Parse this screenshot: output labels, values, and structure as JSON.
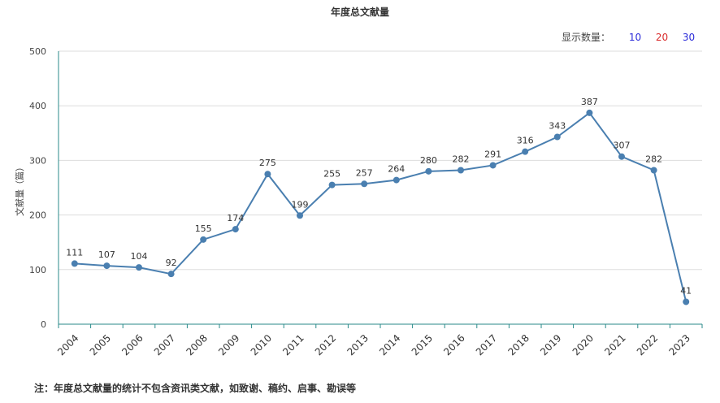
{
  "chart_data": {
    "type": "line",
    "title": "年度总文献量",
    "ylabel": "文献量（篇）",
    "xlabel": "",
    "ylim": [
      0,
      500
    ],
    "yticks": [
      0,
      100,
      200,
      300,
      400,
      500
    ],
    "grid": true,
    "categories": [
      "2004",
      "2005",
      "2006",
      "2007",
      "2008",
      "2009",
      "2010",
      "2011",
      "2012",
      "2013",
      "2014",
      "2015",
      "2016",
      "2017",
      "2018",
      "2019",
      "2020",
      "2021",
      "2022",
      "2023"
    ],
    "values": [
      111,
      107,
      104,
      92,
      155,
      174,
      275,
      199,
      255,
      257,
      264,
      280,
      282,
      291,
      316,
      343,
      387,
      307,
      282,
      41
    ],
    "line_color": "#4a7fb0"
  },
  "display_control": {
    "label": "显示数量：",
    "options": [
      {
        "text": "10",
        "color": "#2b2bd9"
      },
      {
        "text": "20",
        "color": "#d92b2b"
      },
      {
        "text": "30",
        "color": "#2b2bd9"
      }
    ]
  },
  "footnote": "注：年度总文献量的统计不包含资讯类文献，如致谢、稿约、启事、勘误等"
}
